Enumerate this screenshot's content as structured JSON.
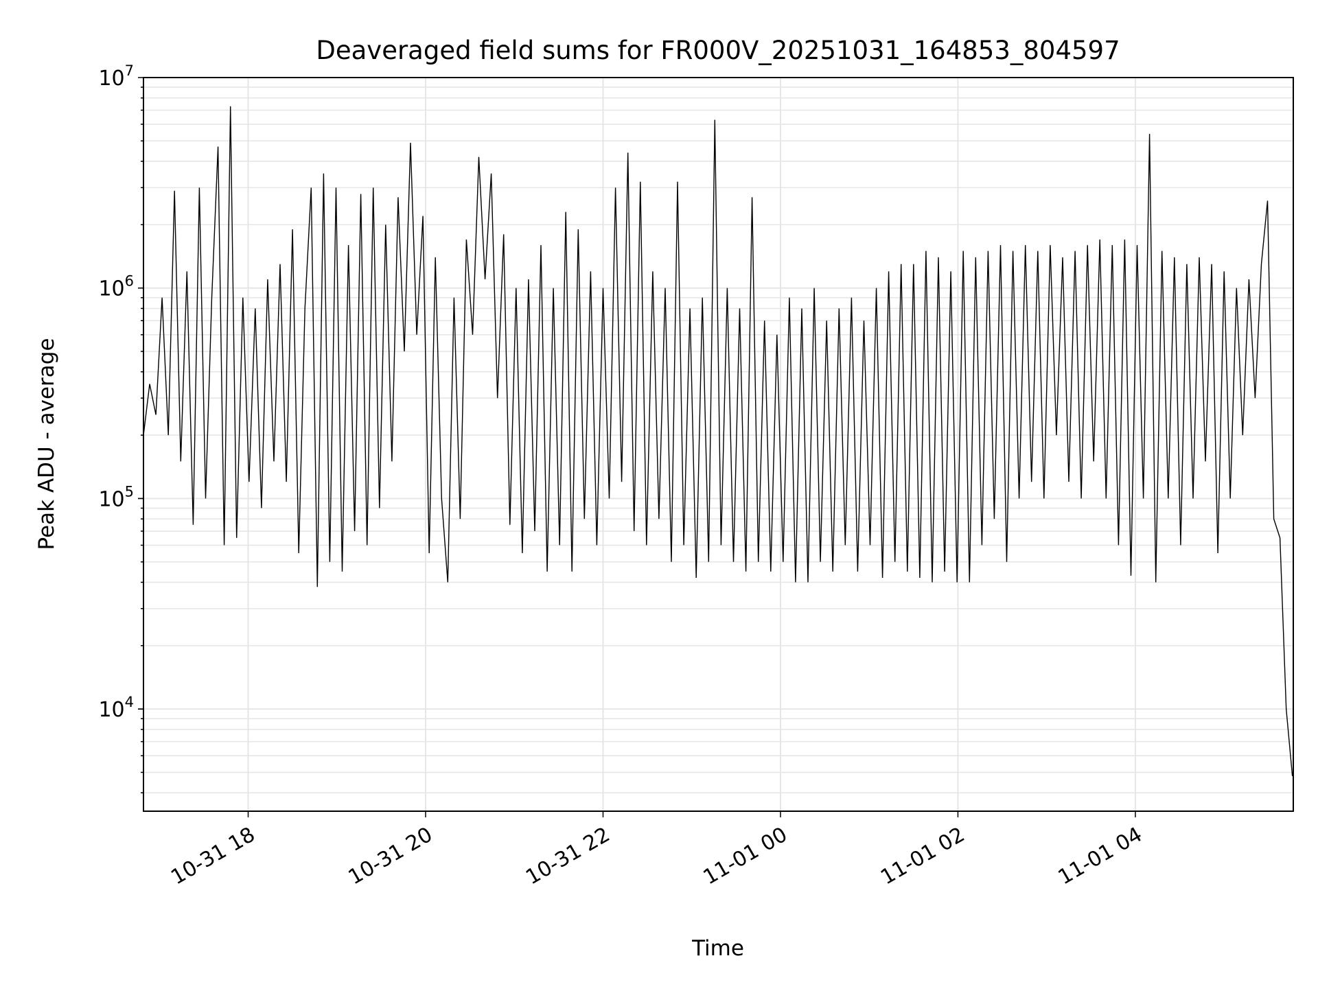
{
  "chart_data": {
    "type": "line",
    "title": "Deaveraged field sums for FR000V_20251031_164853_804597",
    "xlabel": "Time",
    "ylabel": "Peak ADU - average",
    "yscale": "log",
    "ylim": [
      3270,
      10000000
    ],
    "xlim_hours": [
      16.82,
      29.78
    ],
    "grid": true,
    "x_ticks": [
      {
        "hours": 18,
        "label": "10-31 18"
      },
      {
        "hours": 20,
        "label": "10-31 20"
      },
      {
        "hours": 22,
        "label": "10-31 22"
      },
      {
        "hours": 24,
        "label": "11-01 00"
      },
      {
        "hours": 26,
        "label": "11-01 02"
      },
      {
        "hours": 28,
        "label": "11-01 04"
      }
    ],
    "y_ticks": [
      {
        "value": 10000,
        "base": "10",
        "exp": "4"
      },
      {
        "value": 100000,
        "base": "10",
        "exp": "5"
      },
      {
        "value": 1000000,
        "base": "10",
        "exp": "6"
      },
      {
        "value": 10000000,
        "base": "10",
        "exp": "7"
      }
    ],
    "series": [
      {
        "name": "deaveraged field sum",
        "color": "#000000",
        "x_start_hours": 16.82,
        "x_step_hours": 0.07,
        "values": [
          200000.0,
          350000.0,
          250000.0,
          900000.0,
          200000.0,
          2900000.0,
          150000.0,
          1200000.0,
          75000.0,
          3000000.0,
          100000.0,
          900000.0,
          4700000.0,
          60000.0,
          7300000.0,
          65000.0,
          900000.0,
          120000.0,
          800000.0,
          90000.0,
          1100000.0,
          150000.0,
          1300000.0,
          120000.0,
          1900000.0,
          55000.0,
          800000.0,
          3000000.0,
          38000.0,
          3500000.0,
          50000.0,
          3000000.0,
          45000.0,
          1600000.0,
          70000.0,
          2800000.0,
          60000.0,
          3000000.0,
          90000.0,
          2000000.0,
          150000.0,
          2700000.0,
          500000.0,
          4900000.0,
          600000.0,
          2200000.0,
          55000.0,
          1400000.0,
          100000.0,
          40000.0,
          900000.0,
          80000.0,
          1700000.0,
          600000.0,
          4200000.0,
          1100000.0,
          3500000.0,
          300000.0,
          1800000.0,
          75000.0,
          1000000.0,
          55000.0,
          1100000.0,
          70000.0,
          1600000.0,
          45000.0,
          1000000.0,
          60000.0,
          2300000.0,
          45000.0,
          1900000.0,
          80000.0,
          1200000.0,
          60000.0,
          1000000.0,
          100000.0,
          3000000.0,
          120000.0,
          4400000.0,
          70000.0,
          3200000.0,
          60000.0,
          1200000.0,
          80000.0,
          1000000.0,
          50000.0,
          3200000.0,
          60000.0,
          800000.0,
          42000.0,
          900000.0,
          50000.0,
          6300000.0,
          60000.0,
          1000000.0,
          50000.0,
          800000.0,
          45000.0,
          2700000.0,
          50000.0,
          700000.0,
          45000.0,
          600000.0,
          50000.0,
          900000.0,
          40000.0,
          800000.0,
          40000.0,
          1000000.0,
          50000.0,
          700000.0,
          45000.0,
          800000.0,
          60000.0,
          900000.0,
          45000.0,
          700000.0,
          60000.0,
          1000000.0,
          42000.0,
          1200000.0,
          50000.0,
          1300000.0,
          45000.0,
          1300000.0,
          42000.0,
          1500000.0,
          40000.0,
          1400000.0,
          45000.0,
          1200000.0,
          40000.0,
          1500000.0,
          40000.0,
          1400000.0,
          60000.0,
          1500000.0,
          80000.0,
          1600000.0,
          50000.0,
          1500000.0,
          100000.0,
          1600000.0,
          120000.0,
          1500000.0,
          100000.0,
          1600000.0,
          200000.0,
          1400000.0,
          120000.0,
          1500000.0,
          100000.0,
          1600000.0,
          150000.0,
          1700000.0,
          100000.0,
          1600000.0,
          60000.0,
          1700000.0,
          43000.0,
          1600000.0,
          100000.0,
          5400000.0,
          40000.0,
          1500000.0,
          100000.0,
          1400000.0,
          60000.0,
          1300000.0,
          100000.0,
          1400000.0,
          150000.0,
          1300000.0,
          55000.0,
          1200000.0,
          100000.0,
          1000000.0,
          200000.0,
          1100000.0,
          300000.0,
          1300000.0,
          2600000.0,
          80000.0,
          65000.0,
          10000.0,
          4800.0
        ]
      }
    ]
  }
}
